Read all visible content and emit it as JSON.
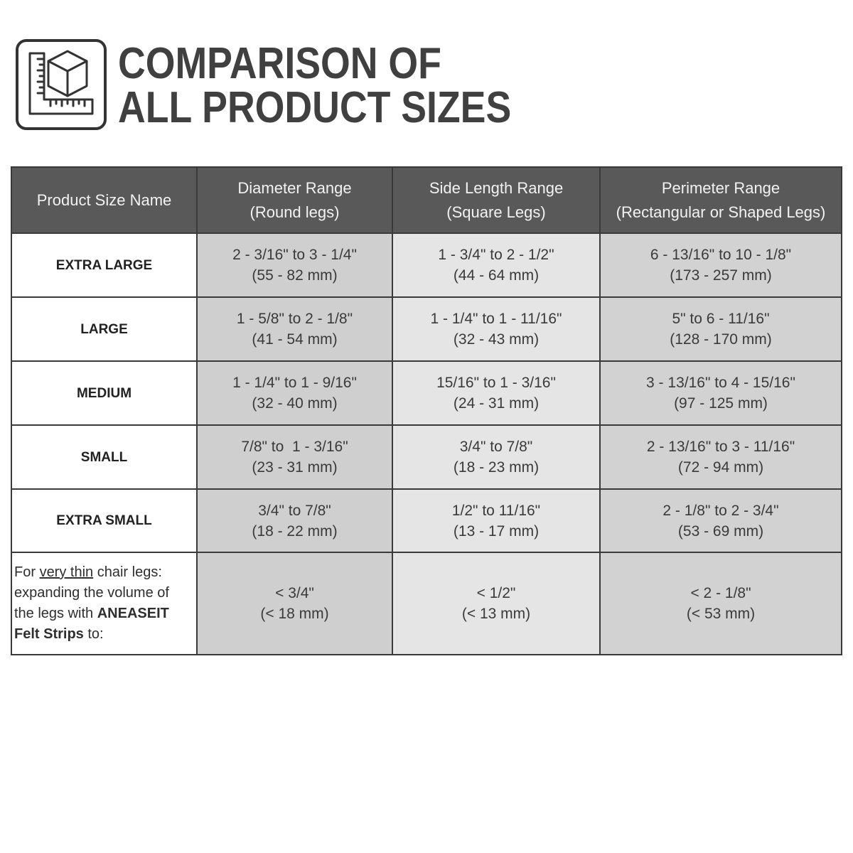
{
  "title": {
    "line1": "COMPARISON OF",
    "line2": "ALL PRODUCT SIZES"
  },
  "logo_icon": "ruler-and-cube-icon",
  "colors": {
    "title": "#404040",
    "header_bg": "#595959",
    "header_text": "#f2f2f2",
    "grid_lines": "#3a3a3a",
    "size_col_bg": "#ffffff",
    "diameter_col_bg": "#cfcfcf",
    "side_col_bg": "#e5e5e5",
    "perimeter_col_bg": "#d2d2d2"
  },
  "table": {
    "headers": {
      "size": "Product Size Name",
      "diameter": {
        "line1": "Diameter Range",
        "line2": "(Round legs)"
      },
      "side": {
        "line1": "Side Length Range",
        "line2": "(Square Legs)"
      },
      "perimeter": {
        "line1": "Perimeter Range",
        "line2": "(Rectangular or Shaped Legs)"
      }
    },
    "rows": [
      {
        "size": "EXTRA LARGE",
        "diameter": {
          "inches": "2 - 3/16\" to 3 - 1/4\"",
          "mm": "(55 - 82 mm)"
        },
        "side": {
          "inches": "1 - 3/4\" to 2 - 1/2\"",
          "mm": "(44 - 64 mm)"
        },
        "perimeter": {
          "inches": "6 - 13/16\" to 10 - 1/8\"",
          "mm": "(173 - 257 mm)"
        }
      },
      {
        "size": "LARGE",
        "diameter": {
          "inches": "1 - 5/8\" to 2 - 1/8\"",
          "mm": "(41 - 54 mm)"
        },
        "side": {
          "inches": "1 - 1/4\" to 1 - 11/16\"",
          "mm": "(32 - 43 mm)"
        },
        "perimeter": {
          "inches": "5\" to 6 - 11/16\"",
          "mm": "(128 - 170 mm)"
        }
      },
      {
        "size": "MEDIUM",
        "diameter": {
          "inches": "1 - 1/4\" to 1 - 9/16\"",
          "mm": "(32 - 40 mm)"
        },
        "side": {
          "inches": "15/16\" to 1 - 3/16\"",
          "mm": "(24 - 31 mm)"
        },
        "perimeter": {
          "inches": "3 - 13/16\" to 4 - 15/16\"",
          "mm": "(97 - 125 mm)"
        }
      },
      {
        "size": "SMALL",
        "diameter": {
          "inches": "7/8\" to  1 - 3/16\"",
          "mm": "(23 - 31 mm)"
        },
        "side": {
          "inches": "3/4\" to 7/8\"",
          "mm": "(18 - 23 mm)"
        },
        "perimeter": {
          "inches": "2 - 13/16\" to 3 - 11/16\"",
          "mm": "(72 - 94 mm)"
        }
      },
      {
        "size": "EXTRA SMALL",
        "diameter": {
          "inches": "3/4\" to 7/8\"",
          "mm": "(18 - 22 mm)"
        },
        "side": {
          "inches": "1/2\" to 11/16\"",
          "mm": "(13 - 17 mm)"
        },
        "perimeter": {
          "inches": "2 - 1/8\" to 2 - 3/4\"",
          "mm": "(53 - 69 mm)"
        }
      }
    ],
    "thin_legs_row": {
      "note": {
        "line1_start": "For",
        "line1_underlined": "very thin",
        "line1_end": "chair legs:",
        "line2": "expanding the volume of",
        "line3_start": "the legs with",
        "line3_brand": "ANEASEIT",
        "line4_product": "Felt Strips",
        "line4_end": "to:"
      },
      "diameter": {
        "inches": "< 3/4\"",
        "mm": "(< 18 mm)"
      },
      "side": {
        "inches": "< 1/2\"",
        "mm": "(< 13 mm)"
      },
      "perimeter": {
        "inches": "< 2 - 1/8\"",
        "mm": "(< 53 mm)"
      }
    }
  }
}
